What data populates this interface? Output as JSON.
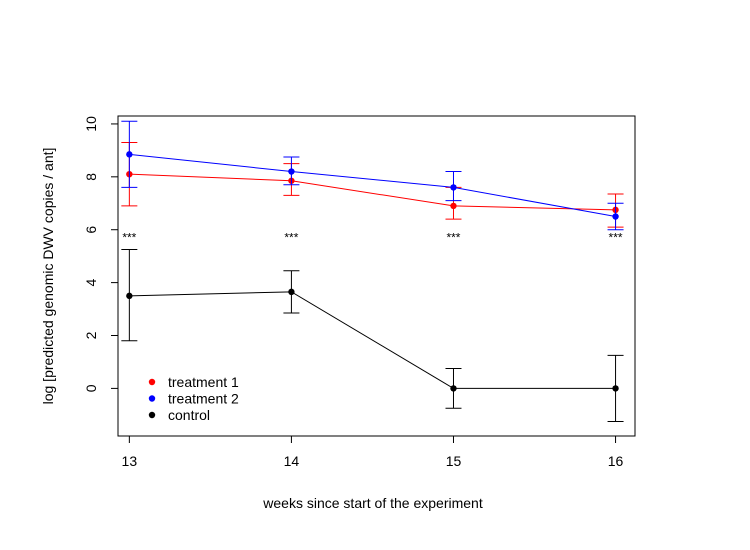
{
  "chart_data": {
    "type": "line",
    "title": "",
    "xlabel": "weeks since start of the experiment",
    "ylabel": "log [predicted genomic DWV copies / ant]",
    "x": [
      13,
      14,
      15,
      16
    ],
    "xticks": [
      "13",
      "14",
      "15",
      "16"
    ],
    "yticks": [
      "0",
      "2",
      "4",
      "6",
      "8",
      "10"
    ],
    "xlim": [
      12.93,
      16.12
    ],
    "ylim": [
      -1.8,
      10.3
    ],
    "grid": false,
    "legend_position": "bottom-left",
    "series": [
      {
        "name": "treatment 1",
        "color": "#ff0000",
        "values": [
          8.1,
          7.85,
          6.9,
          6.75
        ],
        "err_low": [
          6.9,
          7.3,
          6.4,
          6.1
        ],
        "err_high": [
          9.3,
          8.5,
          7.6,
          7.35
        ]
      },
      {
        "name": "treatment 2",
        "color": "#0000ff",
        "values": [
          8.85,
          8.2,
          7.6,
          6.5
        ],
        "err_low": [
          7.6,
          7.7,
          7.1,
          6.0
        ],
        "err_high": [
          10.1,
          8.75,
          8.2,
          7.0
        ]
      },
      {
        "name": "control",
        "color": "#000000",
        "values": [
          3.5,
          3.65,
          0.0,
          0.0
        ],
        "err_low": [
          1.8,
          2.85,
          -0.75,
          -1.25
        ],
        "err_high": [
          5.25,
          4.45,
          0.75,
          1.25
        ]
      }
    ],
    "annotations": [
      {
        "x": 13,
        "y": 5.7,
        "text": "***"
      },
      {
        "x": 14,
        "y": 5.7,
        "text": "***"
      },
      {
        "x": 15,
        "y": 5.7,
        "text": "***"
      },
      {
        "x": 16,
        "y": 5.7,
        "text": "***"
      }
    ]
  }
}
